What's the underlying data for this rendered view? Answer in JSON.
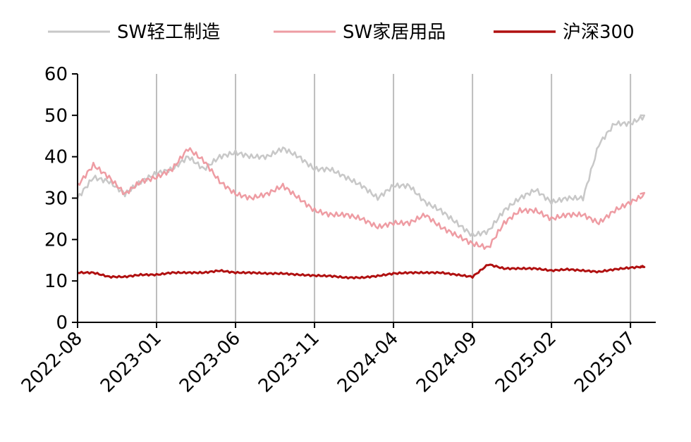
{
  "chart_data": {
    "type": "line",
    "title": "",
    "xlabel": "",
    "ylabel": "",
    "ylim": [
      0,
      60
    ],
    "yticks": [
      "0",
      "10",
      "20",
      "30",
      "40",
      "50",
      "60"
    ],
    "xticks": [
      "2022-08",
      "2023-01",
      "2023-06",
      "2023-11",
      "2024-04",
      "2024-09",
      "2025-02",
      "2025-07"
    ],
    "grid_x": true,
    "grid_y": false,
    "legend_position": "top",
    "x": [
      "2022-08",
      "2022-09",
      "2022-10",
      "2022-11",
      "2022-12",
      "2023-01",
      "2023-02",
      "2023-03",
      "2023-04",
      "2023-05",
      "2023-06",
      "2023-07",
      "2023-08",
      "2023-09",
      "2023-10",
      "2023-11",
      "2023-12",
      "2024-01",
      "2024-02",
      "2024-03",
      "2024-04",
      "2024-05",
      "2024-06",
      "2024-07",
      "2024-08",
      "2024-09",
      "2024-10",
      "2024-11",
      "2024-12",
      "2025-01",
      "2025-02",
      "2025-03",
      "2025-04",
      "2025-05",
      "2025-06",
      "2025-07",
      "2025-08"
    ],
    "series": [
      {
        "name": "SW轻工制造",
        "color": "#c8c8c8",
        "values": [
          30,
          35,
          34,
          31,
          34,
          36,
          37,
          40,
          37,
          40,
          41,
          40,
          40,
          42,
          40,
          37,
          37,
          35,
          33,
          30,
          33,
          33,
          29,
          27,
          24,
          21,
          22,
          27,
          30,
          32,
          29,
          30,
          30,
          43,
          48,
          48,
          50
        ]
      },
      {
        "name": "SW家居用品",
        "color": "#ee9ca3",
        "values": [
          33,
          38,
          35,
          31,
          34,
          35,
          37,
          42,
          39,
          34,
          31,
          30,
          31,
          33,
          30,
          27,
          26,
          26,
          25,
          23,
          24,
          24,
          26,
          23,
          21,
          19,
          18,
          24,
          27,
          27,
          25,
          26,
          26,
          24,
          27,
          29,
          31
        ]
      },
      {
        "name": "沪深300",
        "color": "#b01010",
        "values": [
          12,
          12,
          11,
          11,
          11.5,
          11.5,
          12,
          12,
          12,
          12.5,
          12,
          12,
          11.8,
          11.8,
          11.5,
          11.3,
          11.2,
          10.8,
          10.8,
          11.2,
          11.8,
          12,
          12,
          12,
          11.5,
          11,
          14,
          13,
          13,
          13,
          12.5,
          12.8,
          12.5,
          12.2,
          12.8,
          13.2,
          13.5
        ]
      }
    ]
  }
}
